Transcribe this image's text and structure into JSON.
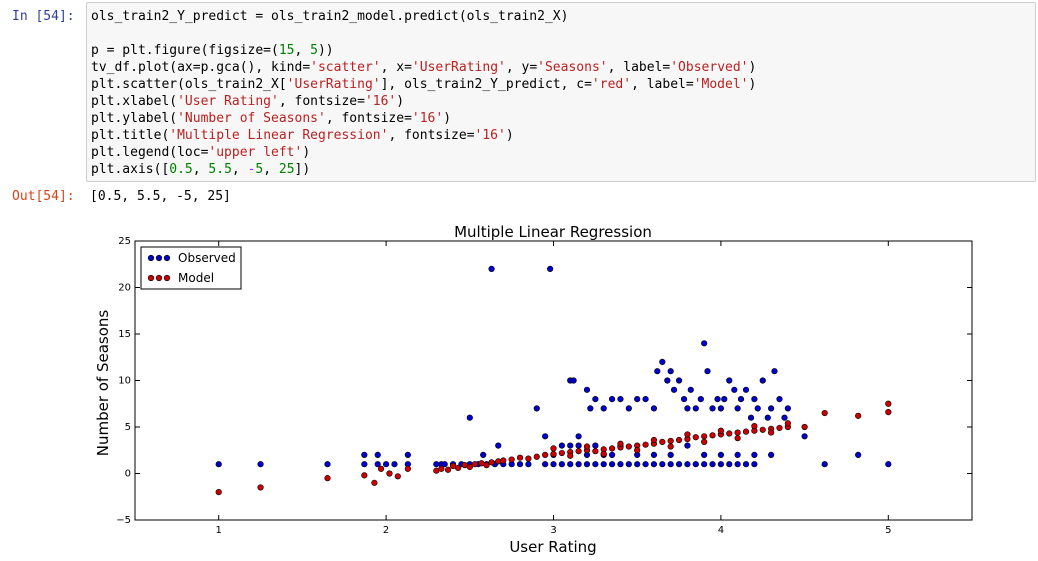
{
  "cell": {
    "in_prompt": "In [54]:",
    "out_prompt": "Out[54]:",
    "code_lines": [
      [
        {
          "t": "ols_train2_Y_predict = ols_train2_model.predict(ols_train2_X)"
        }
      ],
      [
        {
          "t": ""
        }
      ],
      [
        {
          "t": "p = plt.figure(figsize=("
        },
        {
          "t": "15",
          "c": "num"
        },
        {
          "t": ", "
        },
        {
          "t": "5",
          "c": "num"
        },
        {
          "t": "))"
        }
      ],
      [
        {
          "t": "tv_df.plot(ax=p.gca(), kind="
        },
        {
          "t": "'scatter'",
          "c": "str"
        },
        {
          "t": ", x="
        },
        {
          "t": "'UserRating'",
          "c": "str"
        },
        {
          "t": ", y="
        },
        {
          "t": "'Seasons'",
          "c": "str"
        },
        {
          "t": ", label="
        },
        {
          "t": "'Observed'",
          "c": "str"
        },
        {
          "t": ")"
        }
      ],
      [
        {
          "t": "plt.scatter(ols_train2_X["
        },
        {
          "t": "'UserRating'",
          "c": "str"
        },
        {
          "t": "], ols_train2_Y_predict, c="
        },
        {
          "t": "'red'",
          "c": "str"
        },
        {
          "t": ", label="
        },
        {
          "t": "'Model'",
          "c": "str"
        },
        {
          "t": ")"
        }
      ],
      [
        {
          "t": "plt.xlabel("
        },
        {
          "t": "'User Rating'",
          "c": "str"
        },
        {
          "t": ", fontsize="
        },
        {
          "t": "'16'",
          "c": "str"
        },
        {
          "t": ")"
        }
      ],
      [
        {
          "t": "plt.ylabel("
        },
        {
          "t": "'Number of Seasons'",
          "c": "str"
        },
        {
          "t": ", fontsize="
        },
        {
          "t": "'16'",
          "c": "str"
        },
        {
          "t": ")"
        }
      ],
      [
        {
          "t": "plt.title("
        },
        {
          "t": "'Multiple Linear Regression'",
          "c": "str"
        },
        {
          "t": ", fontsize="
        },
        {
          "t": "'16'",
          "c": "str"
        },
        {
          "t": ")"
        }
      ],
      [
        {
          "t": "plt.legend(loc="
        },
        {
          "t": "'upper left'",
          "c": "str"
        },
        {
          "t": ")"
        }
      ],
      [
        {
          "t": "plt.axis(["
        },
        {
          "t": "0.5",
          "c": "num"
        },
        {
          "t": ", "
        },
        {
          "t": "5.5",
          "c": "num"
        },
        {
          "t": ", "
        },
        {
          "t": "-",
          "c": "op"
        },
        {
          "t": "5",
          "c": "num"
        },
        {
          "t": ", "
        },
        {
          "t": "25",
          "c": "num"
        },
        {
          "t": "])"
        }
      ]
    ],
    "output_text": "[0.5, 5.5, -5, 25]"
  },
  "chart_data": {
    "type": "scatter",
    "title": "Multiple Linear Regression",
    "xlabel": "User Rating",
    "ylabel": "Number of Seasons",
    "xlim": [
      0.5,
      5.5
    ],
    "ylim": [
      -5,
      25
    ],
    "x_ticks": [
      1,
      2,
      3,
      4,
      5
    ],
    "y_ticks": [
      -5,
      0,
      5,
      10,
      15,
      20,
      25
    ],
    "grid": false,
    "legend_loc": "upper left",
    "legend": [
      "Observed",
      "Model"
    ],
    "colors": {
      "observed": "#0000cc",
      "model": "#cc0000",
      "edge": "#000000"
    },
    "series": [
      {
        "name": "Observed",
        "points": [
          [
            1.0,
            1
          ],
          [
            1.25,
            1
          ],
          [
            1.65,
            1
          ],
          [
            1.87,
            2
          ],
          [
            1.87,
            1
          ],
          [
            1.95,
            1
          ],
          [
            1.95,
            2
          ],
          [
            2.0,
            1
          ],
          [
            2.05,
            1
          ],
          [
            2.13,
            2
          ],
          [
            2.13,
            1
          ],
          [
            2.3,
            1
          ],
          [
            2.33,
            1
          ],
          [
            2.35,
            1
          ],
          [
            2.4,
            1
          ],
          [
            2.45,
            1
          ],
          [
            2.5,
            1
          ],
          [
            2.55,
            1
          ],
          [
            2.58,
            2
          ],
          [
            2.6,
            1
          ],
          [
            2.65,
            1
          ],
          [
            2.7,
            1
          ],
          [
            2.75,
            1
          ],
          [
            2.8,
            1
          ],
          [
            2.85,
            1
          ],
          [
            2.5,
            6
          ],
          [
            2.63,
            22
          ],
          [
            2.67,
            3
          ],
          [
            2.95,
            1
          ],
          [
            2.98,
            22
          ],
          [
            2.9,
            7
          ],
          [
            2.95,
            4
          ],
          [
            3.1,
            10
          ],
          [
            3.12,
            10
          ],
          [
            3.15,
            4
          ],
          [
            3.2,
            9
          ],
          [
            3.22,
            7
          ],
          [
            3.25,
            8
          ],
          [
            3.3,
            7
          ],
          [
            3.35,
            8
          ],
          [
            3.0,
            2
          ],
          [
            3.05,
            3
          ],
          [
            3.1,
            3
          ],
          [
            3.15,
            3
          ],
          [
            3.2,
            2
          ],
          [
            3.25,
            3
          ],
          [
            3.3,
            2
          ],
          [
            3.35,
            2
          ],
          [
            3.4,
            3
          ],
          [
            3.4,
            8
          ],
          [
            3.45,
            7
          ],
          [
            3.5,
            8
          ],
          [
            3.55,
            8
          ],
          [
            3.6,
            7
          ],
          [
            3.62,
            11
          ],
          [
            3.65,
            12
          ],
          [
            3.68,
            10
          ],
          [
            3.7,
            11
          ],
          [
            3.72,
            9
          ],
          [
            3.75,
            10
          ],
          [
            3.78,
            8
          ],
          [
            3.8,
            7
          ],
          [
            3.82,
            9
          ],
          [
            3.85,
            7
          ],
          [
            3.88,
            8
          ],
          [
            3.9,
            14
          ],
          [
            3.92,
            11
          ],
          [
            3.95,
            7
          ],
          [
            3.98,
            8
          ],
          [
            4.0,
            7
          ],
          [
            4.02,
            8
          ],
          [
            4.05,
            10
          ],
          [
            4.08,
            9
          ],
          [
            4.1,
            7
          ],
          [
            4.12,
            8
          ],
          [
            4.15,
            9
          ],
          [
            4.18,
            6
          ],
          [
            4.2,
            8
          ],
          [
            4.22,
            7
          ],
          [
            4.25,
            10
          ],
          [
            4.28,
            6
          ],
          [
            4.3,
            7
          ],
          [
            4.32,
            11
          ],
          [
            4.35,
            8
          ],
          [
            4.38,
            6
          ],
          [
            4.4,
            7
          ],
          [
            3.5,
            2
          ],
          [
            3.6,
            2
          ],
          [
            3.7,
            2
          ],
          [
            3.8,
            3
          ],
          [
            3.9,
            2
          ],
          [
            4.0,
            2
          ],
          [
            4.1,
            2
          ],
          [
            4.2,
            2
          ],
          [
            3.0,
            1
          ],
          [
            3.05,
            1
          ],
          [
            3.1,
            1
          ],
          [
            3.15,
            1
          ],
          [
            3.2,
            1
          ],
          [
            3.25,
            1
          ],
          [
            3.3,
            1
          ],
          [
            3.35,
            1
          ],
          [
            3.4,
            1
          ],
          [
            3.45,
            1
          ],
          [
            3.5,
            1
          ],
          [
            3.55,
            1
          ],
          [
            3.6,
            1
          ],
          [
            3.65,
            1
          ],
          [
            3.7,
            1
          ],
          [
            3.75,
            1
          ],
          [
            3.8,
            1
          ],
          [
            3.85,
            1
          ],
          [
            3.9,
            1
          ],
          [
            3.95,
            1
          ],
          [
            4.0,
            1
          ],
          [
            4.05,
            1
          ],
          [
            4.1,
            1
          ],
          [
            4.15,
            1
          ],
          [
            4.2,
            1
          ],
          [
            4.3,
            2
          ],
          [
            4.5,
            4
          ],
          [
            4.62,
            1
          ],
          [
            4.82,
            2
          ],
          [
            5.0,
            1
          ]
        ]
      },
      {
        "name": "Model",
        "points": [
          [
            1.0,
            -2
          ],
          [
            1.25,
            -1.5
          ],
          [
            1.65,
            -0.5
          ],
          [
            1.87,
            -0.2
          ],
          [
            1.93,
            -1
          ],
          [
            1.97,
            0.5
          ],
          [
            2.02,
            0
          ],
          [
            2.07,
            -0.3
          ],
          [
            2.13,
            0.5
          ],
          [
            2.3,
            0.3
          ],
          [
            2.33,
            0.5
          ],
          [
            2.37,
            0.4
          ],
          [
            2.4,
            0.8
          ],
          [
            2.43,
            0.6
          ],
          [
            2.47,
            0.9
          ],
          [
            2.5,
            0.7
          ],
          [
            2.53,
            1.0
          ],
          [
            2.57,
            1.1
          ],
          [
            2.6,
            0.9
          ],
          [
            2.63,
            1.2
          ],
          [
            2.67,
            1.3
          ],
          [
            2.7,
            1.4
          ],
          [
            2.75,
            1.5
          ],
          [
            2.8,
            1.7
          ],
          [
            2.85,
            1.6
          ],
          [
            2.9,
            1.8
          ],
          [
            2.95,
            2.0
          ],
          [
            3.0,
            2.1
          ],
          [
            3.05,
            2.2
          ],
          [
            3.1,
            2.3
          ],
          [
            3.15,
            2.4
          ],
          [
            3.2,
            2.5
          ],
          [
            3.25,
            2.4
          ],
          [
            3.3,
            2.6
          ],
          [
            3.35,
            2.7
          ],
          [
            3.4,
            2.8
          ],
          [
            3.45,
            2.9
          ],
          [
            3.5,
            3.0
          ],
          [
            3.55,
            3.1
          ],
          [
            3.6,
            3.2
          ],
          [
            3.65,
            3.4
          ],
          [
            3.7,
            3.5
          ],
          [
            3.75,
            3.6
          ],
          [
            3.8,
            3.7
          ],
          [
            3.85,
            3.9
          ],
          [
            3.9,
            4.0
          ],
          [
            3.95,
            4.1
          ],
          [
            4.0,
            4.2
          ],
          [
            4.05,
            4.3
          ],
          [
            4.1,
            4.4
          ],
          [
            4.15,
            4.5
          ],
          [
            4.2,
            4.6
          ],
          [
            4.25,
            4.7
          ],
          [
            4.3,
            4.8
          ],
          [
            4.35,
            4.9
          ],
          [
            4.4,
            5.0
          ],
          [
            3.0,
            2.7
          ],
          [
            3.1,
            1.9
          ],
          [
            3.2,
            2.9
          ],
          [
            3.3,
            2.1
          ],
          [
            3.4,
            3.2
          ],
          [
            3.5,
            2.5
          ],
          [
            3.6,
            3.6
          ],
          [
            3.7,
            2.9
          ],
          [
            3.8,
            4.2
          ],
          [
            3.9,
            3.4
          ],
          [
            4.0,
            4.6
          ],
          [
            4.1,
            3.8
          ],
          [
            4.2,
            5.1
          ],
          [
            4.3,
            4.4
          ],
          [
            4.4,
            5.4
          ],
          [
            4.5,
            5
          ],
          [
            4.62,
            6.5
          ],
          [
            4.82,
            6.2
          ],
          [
            5.0,
            7.5
          ],
          [
            5.0,
            6.6
          ]
        ]
      }
    ]
  }
}
